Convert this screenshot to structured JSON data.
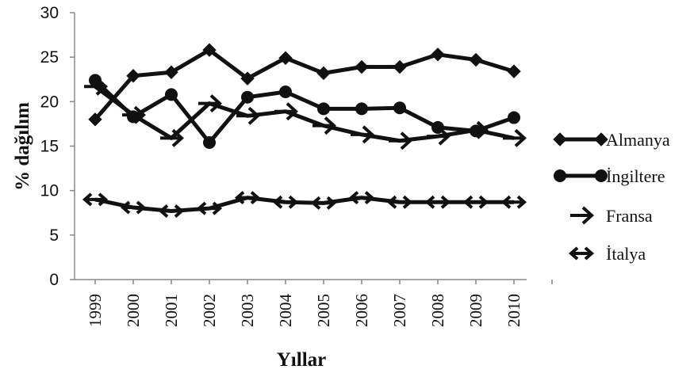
{
  "chart_data": {
    "type": "line",
    "title": "",
    "xlabel": "Yıllar",
    "ylabel": "% dağılım",
    "categories": [
      "1999",
      "2000",
      "2001",
      "2002",
      "2003",
      "2004",
      "2005",
      "2006",
      "2007",
      "2008",
      "2009",
      "2010"
    ],
    "ylim": [
      0,
      30
    ],
    "yticks": [
      "0",
      "5",
      "10",
      "15",
      "20",
      "25",
      "30"
    ],
    "grid": false,
    "legend_position": "right",
    "series": [
      {
        "name": "Almanya",
        "marker": "diamond",
        "values": [
          18.0,
          22.9,
          23.3,
          25.8,
          22.6,
          24.9,
          23.2,
          23.9,
          23.9,
          25.3,
          24.7,
          23.4
        ]
      },
      {
        "name": "İngiltere",
        "marker": "circle",
        "values": [
          22.4,
          18.3,
          20.8,
          15.4,
          20.5,
          21.1,
          19.2,
          19.2,
          19.3,
          17.1,
          16.7,
          18.2
        ]
      },
      {
        "name": "Fransa",
        "marker": "arrow-right",
        "values": [
          21.7,
          18.5,
          15.9,
          19.8,
          18.4,
          18.9,
          17.3,
          16.3,
          15.6,
          16.1,
          16.8,
          15.9
        ]
      },
      {
        "name": "İtalya",
        "marker": "double-arrow",
        "values": [
          9.0,
          8.1,
          7.7,
          8.0,
          9.2,
          8.7,
          8.6,
          9.2,
          8.7,
          8.7,
          8.7,
          8.7
        ]
      }
    ]
  }
}
